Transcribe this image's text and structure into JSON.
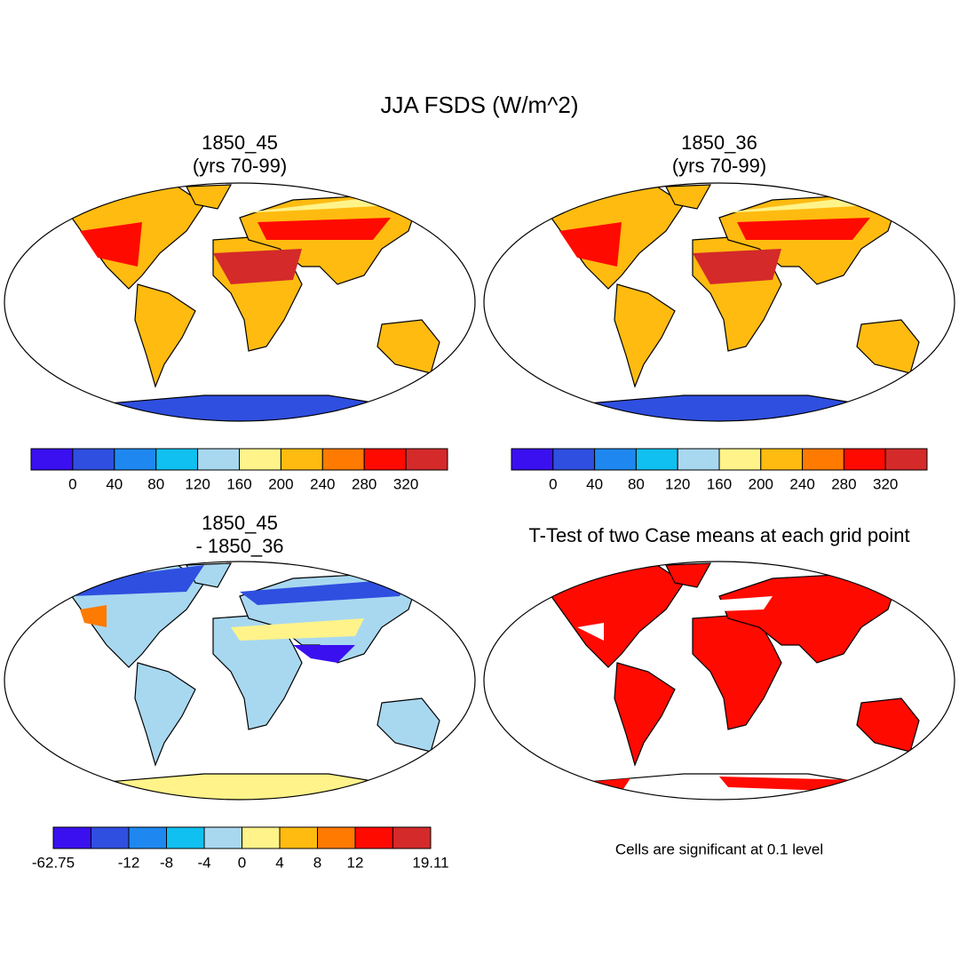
{
  "title": "JJA FSDS (W/m^2)",
  "panels": [
    {
      "title_lines": [
        "1850_45",
        "(yrs 70-99)"
      ]
    },
    {
      "title_lines": [
        "1850_36",
        "(yrs 70-99)"
      ]
    },
    {
      "title_lines": [
        "1850_45",
        "- 1850_36"
      ]
    },
    {
      "title_lines": [
        "T-Test of two Case means at each grid point"
      ],
      "note": "Cells are significant at 0.1 level"
    }
  ],
  "colorbars": [
    {
      "colors": [
        "#3a10f0",
        "#2f4fe0",
        "#1e88f0",
        "#10c0f0",
        "#a8d8f0",
        "#fff38a",
        "#ffbb10",
        "#ff7a00",
        "#ff0a00",
        "#d42a2a"
      ],
      "levels": [
        null,
        0,
        40,
        80,
        120,
        160,
        200,
        240,
        280,
        320,
        null
      ]
    },
    {
      "colors": [
        "#3a10f0",
        "#2f4fe0",
        "#1e88f0",
        "#10c0f0",
        "#a8d8f0",
        "#fff38a",
        "#ffbb10",
        "#ff7a00",
        "#ff0a00",
        "#d42a2a"
      ],
      "levels": [
        null,
        0,
        40,
        80,
        120,
        160,
        200,
        240,
        280,
        320,
        null
      ]
    },
    {
      "colors": [
        "#3a10f0",
        "#2f4fe0",
        "#1e88f0",
        "#10c0f0",
        "#a8d8f0",
        "#fff38a",
        "#ffbb10",
        "#ff7a00",
        "#ff0a00",
        "#d42a2a"
      ],
      "levels": [
        -62.75,
        null,
        -12,
        -8,
        -4,
        0,
        4,
        8,
        12,
        null,
        19.11
      ]
    }
  ]
}
